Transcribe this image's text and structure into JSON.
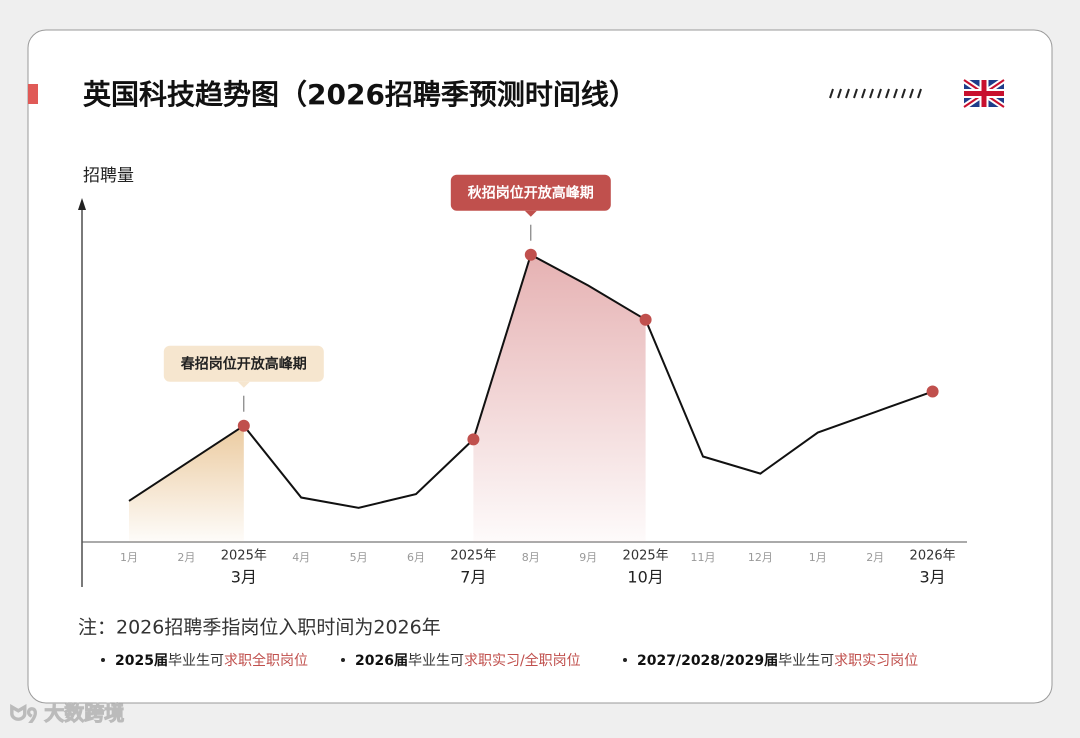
{
  "chart_data": {
    "type": "line",
    "title": "英国科技趋势图（2026招聘季预测时间线）",
    "y_label": "招聘量",
    "categories": [
      "1月",
      "2月",
      "3月",
      "4月",
      "5月",
      "6月",
      "7月",
      "8月",
      "9月",
      "10月",
      "11月",
      "12月",
      "1月",
      "2月",
      "3月"
    ],
    "category_years": [
      null,
      null,
      "2025年",
      null,
      null,
      null,
      "2025年",
      null,
      null,
      "2025年",
      null,
      null,
      null,
      null,
      "2026年"
    ],
    "values": [
      12,
      23,
      34,
      13,
      10,
      14,
      30,
      84,
      75,
      65,
      25,
      20,
      32,
      38,
      44
    ],
    "ylim": [
      0,
      100
    ],
    "color": "#111111",
    "marker_color": "#c0504d",
    "marked_points": [
      2,
      6,
      7,
      9,
      14
    ],
    "highlight_ranges": [
      {
        "from": 0,
        "to": 2,
        "color": "#e9c595"
      },
      {
        "from": 6,
        "to": 9,
        "color": "#e3a9aa"
      }
    ],
    "annotations": [
      {
        "text": "春招岗位开放高峰期",
        "point": 2,
        "fill": "#f6e6cf",
        "text_color": "#222222"
      },
      {
        "text": "秋招岗位开放高峰期",
        "point": 7,
        "fill": "#c0504d",
        "text_color": "#ffffff"
      }
    ],
    "note": "注：2026招聘季指岗位入职时间为2026年",
    "bullets": [
      [
        "2025届",
        "毕业生可",
        "求职全职岗位"
      ],
      [
        "2026届",
        "毕业生可",
        "求职实习/全职岗位"
      ],
      [
        "2027/2028/2029届",
        "毕业生可",
        "求职实习岗位"
      ]
    ],
    "watermark": "大数跨境"
  }
}
